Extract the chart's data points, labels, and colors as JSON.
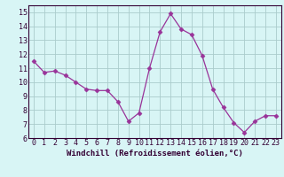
{
  "x": [
    0,
    1,
    2,
    3,
    4,
    5,
    6,
    7,
    8,
    9,
    10,
    11,
    12,
    13,
    14,
    15,
    16,
    17,
    18,
    19,
    20,
    21,
    22,
    23
  ],
  "y": [
    11.5,
    10.7,
    10.8,
    10.5,
    10.0,
    9.5,
    9.4,
    9.4,
    8.6,
    7.2,
    7.8,
    11.0,
    13.6,
    14.9,
    13.8,
    13.4,
    11.9,
    9.5,
    8.2,
    7.1,
    6.4,
    7.2,
    7.6,
    7.6
  ],
  "line_color": "#993399",
  "marker": "D",
  "marker_size": 2.5,
  "background_color": "#d8f5f5",
  "grid_color": "#aacccc",
  "xlabel": "Windchill (Refroidissement éolien,°C)",
  "xlabel_fontsize": 6.5,
  "tick_fontsize": 6.0,
  "ylim": [
    6,
    15.5
  ],
  "yticks": [
    6,
    7,
    8,
    9,
    10,
    11,
    12,
    13,
    14,
    15
  ],
  "xticks": [
    0,
    1,
    2,
    3,
    4,
    5,
    6,
    7,
    8,
    9,
    10,
    11,
    12,
    13,
    14,
    15,
    16,
    17,
    18,
    19,
    20,
    21,
    22,
    23
  ],
  "xlim": [
    -0.5,
    23.5
  ],
  "spine_color": "#330033",
  "text_color": "#330033"
}
